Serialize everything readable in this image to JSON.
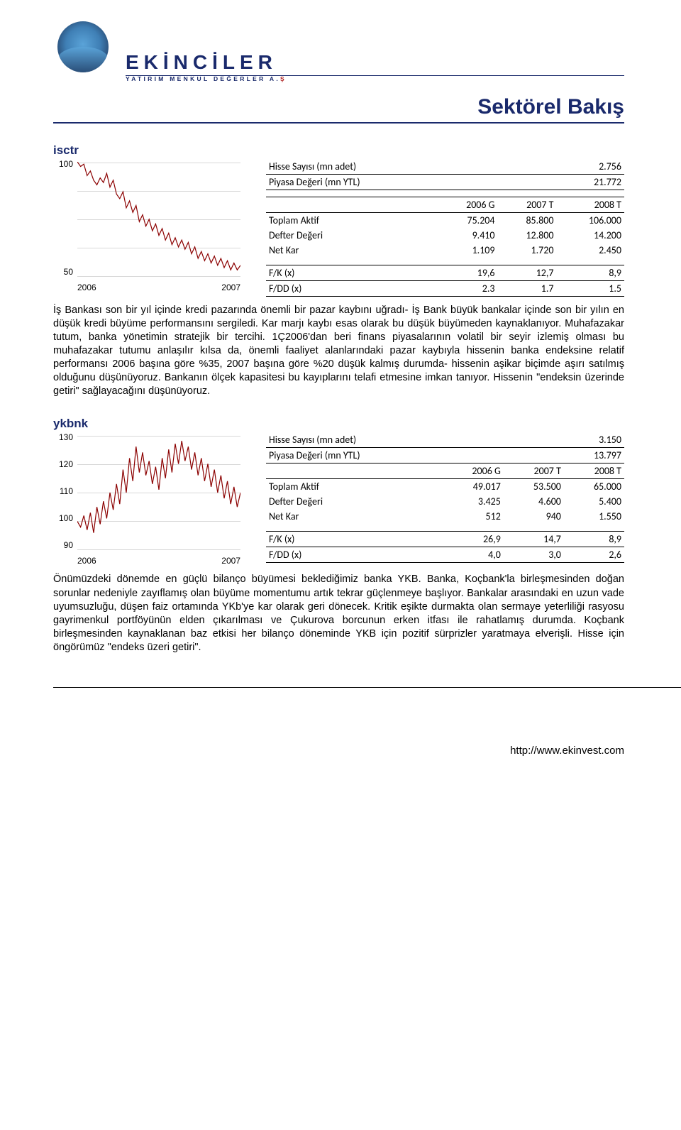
{
  "brand": {
    "name": "EKİNCİLER",
    "subtitle_pre": "YATIRIM MENKUL DEĞERLER A.",
    "subtitle_red": "Ş"
  },
  "page_title": "Sektörel Bakış",
  "column_headers": [
    "2006 G",
    "2007 T",
    "2008 T"
  ],
  "row_labels": {
    "shares": "Hisse Sayısı (mn adet)",
    "mcap": "Piyasa Değeri (mn YTL)",
    "total_assets": "Toplam Aktif",
    "book_value": "Defter Değeri",
    "net_profit": "Net Kar",
    "pe": "F/K (x)",
    "pbv": "F/DD (x)"
  },
  "isctr": {
    "ticker": "isctr",
    "shares": "2.756",
    "mcap": "21.772",
    "total_assets": [
      "75.204",
      "85.800",
      "106.000"
    ],
    "book_value": [
      "9.410",
      "12.800",
      "14.200"
    ],
    "net_profit": [
      "1.109",
      "1.720",
      "2.450"
    ],
    "pe": [
      "19,6",
      "12,7",
      "8,9"
    ],
    "pbv": [
      "2.3",
      "1.7",
      "1.5"
    ],
    "chart": {
      "ylabels": [
        "100",
        "50"
      ],
      "xlabels": [
        "2006",
        "2007"
      ],
      "color": "#8b0000",
      "points": [
        [
          0,
          100
        ],
        [
          2,
          98
        ],
        [
          4,
          99
        ],
        [
          6,
          94
        ],
        [
          8,
          96
        ],
        [
          10,
          92
        ],
        [
          12,
          90
        ],
        [
          14,
          93
        ],
        [
          16,
          91
        ],
        [
          18,
          95
        ],
        [
          20,
          89
        ],
        [
          22,
          92
        ],
        [
          24,
          86
        ],
        [
          26,
          84
        ],
        [
          28,
          87
        ],
        [
          30,
          80
        ],
        [
          32,
          83
        ],
        [
          34,
          78
        ],
        [
          36,
          81
        ],
        [
          38,
          74
        ],
        [
          40,
          77
        ],
        [
          42,
          72
        ],
        [
          44,
          75
        ],
        [
          46,
          70
        ],
        [
          48,
          73
        ],
        [
          50,
          68
        ],
        [
          52,
          71
        ],
        [
          54,
          66
        ],
        [
          56,
          69
        ],
        [
          58,
          64
        ],
        [
          60,
          67
        ],
        [
          62,
          63
        ],
        [
          64,
          66
        ],
        [
          66,
          62
        ],
        [
          68,
          65
        ],
        [
          70,
          60
        ],
        [
          72,
          63
        ],
        [
          74,
          58
        ],
        [
          76,
          61
        ],
        [
          78,
          57
        ],
        [
          80,
          60
        ],
        [
          82,
          56
        ],
        [
          84,
          59
        ],
        [
          86,
          55
        ],
        [
          88,
          58
        ],
        [
          90,
          54
        ],
        [
          92,
          57
        ],
        [
          94,
          53
        ],
        [
          96,
          56
        ],
        [
          98,
          53
        ],
        [
          100,
          55
        ]
      ],
      "ymin": 50,
      "ymax": 100
    },
    "paragraph": "İş Bankası son bir yıl içinde kredi pazarında önemli bir pazar kaybını uğradı- İş Bank büyük bankalar içinde son bir yılın en düşük kredi büyüme performansını sergiledi. Kar marjı kaybı esas olarak bu düşük büyümeden kaynaklanıyor. Muhafazakar tutum, banka yönetimin stratejik bir tercihi. 1Ç2006'dan beri finans piyasalarının volatil bir seyir izlemiş olması bu muhafazakar tutumu anlaşılır kılsa da, önemli faaliyet alanlarındaki pazar kaybıyla hissenin banka endeksine relatif performansı 2006 başına göre %35, 2007 başına göre %20 düşük kalmış durumda- hissenin aşikar biçimde aşırı satılmış olduğunu düşünüyoruz. Bankanın ölçek kapasitesi bu kayıplarını telafi etmesine imkan tanıyor. Hissenin \"endeksin üzerinde getiri\" sağlayacağını düşünüyoruz."
  },
  "ykbnk": {
    "ticker": "ykbnk",
    "shares": "3.150",
    "mcap": "13.797",
    "total_assets": [
      "49.017",
      "53.500",
      "65.000"
    ],
    "book_value": [
      "3.425",
      "4.600",
      "5.400"
    ],
    "net_profit": [
      "512",
      "940",
      "1.550"
    ],
    "pe": [
      "26,9",
      "14,7",
      "8,9"
    ],
    "pbv": [
      "4,0",
      "3,0",
      "2,6"
    ],
    "chart": {
      "ylabels": [
        "130",
        "120",
        "110",
        "100",
        "90"
      ],
      "xlabels": [
        "2006",
        "2007"
      ],
      "color": "#8b0000",
      "points": [
        [
          0,
          100
        ],
        [
          2,
          98
        ],
        [
          4,
          102
        ],
        [
          6,
          97
        ],
        [
          8,
          103
        ],
        [
          10,
          96
        ],
        [
          12,
          105
        ],
        [
          14,
          99
        ],
        [
          16,
          107
        ],
        [
          18,
          101
        ],
        [
          20,
          110
        ],
        [
          22,
          104
        ],
        [
          24,
          113
        ],
        [
          26,
          106
        ],
        [
          28,
          118
        ],
        [
          30,
          110
        ],
        [
          32,
          122
        ],
        [
          34,
          114
        ],
        [
          36,
          126
        ],
        [
          38,
          117
        ],
        [
          40,
          124
        ],
        [
          42,
          116
        ],
        [
          44,
          121
        ],
        [
          46,
          113
        ],
        [
          48,
          119
        ],
        [
          50,
          111
        ],
        [
          52,
          122
        ],
        [
          54,
          115
        ],
        [
          56,
          125
        ],
        [
          58,
          117
        ],
        [
          60,
          127
        ],
        [
          62,
          120
        ],
        [
          64,
          128
        ],
        [
          66,
          121
        ],
        [
          68,
          126
        ],
        [
          70,
          118
        ],
        [
          72,
          124
        ],
        [
          74,
          116
        ],
        [
          76,
          122
        ],
        [
          78,
          114
        ],
        [
          80,
          120
        ],
        [
          82,
          112
        ],
        [
          84,
          118
        ],
        [
          86,
          110
        ],
        [
          88,
          116
        ],
        [
          90,
          108
        ],
        [
          92,
          114
        ],
        [
          94,
          106
        ],
        [
          96,
          112
        ],
        [
          98,
          105
        ],
        [
          100,
          110
        ]
      ],
      "ymin": 90,
      "ymax": 130
    },
    "paragraph": "Önümüzdeki dönemde en güçlü bilanço büyümesi beklediğimiz banka YKB. Banka, Koçbank'la birleşmesinden doğan sorunlar nedeniyle zayıflamış olan büyüme momentumu artık tekrar güçlenmeye başlıyor. Bankalar arasındaki en uzun vade uyumsuzluğu, düşen faiz ortamında YKb'ye kar olarak geri dönecek. Kritik eşikte durmakta olan sermaye yeterliliği rasyosu gayrimenkul portföyünün elden çıkarılması ve Çukurova borcunun erken itfası ile rahatlamış durumda. Koçbank birleşmesinden kaynaklanan baz etkisi her bilanço döneminde YKB için pozitif sürprizler yaratmaya elverişli. Hisse için öngörümüz \"endeks üzeri getiri\"."
  },
  "footer_url": "http://www.ekinvest.com"
}
